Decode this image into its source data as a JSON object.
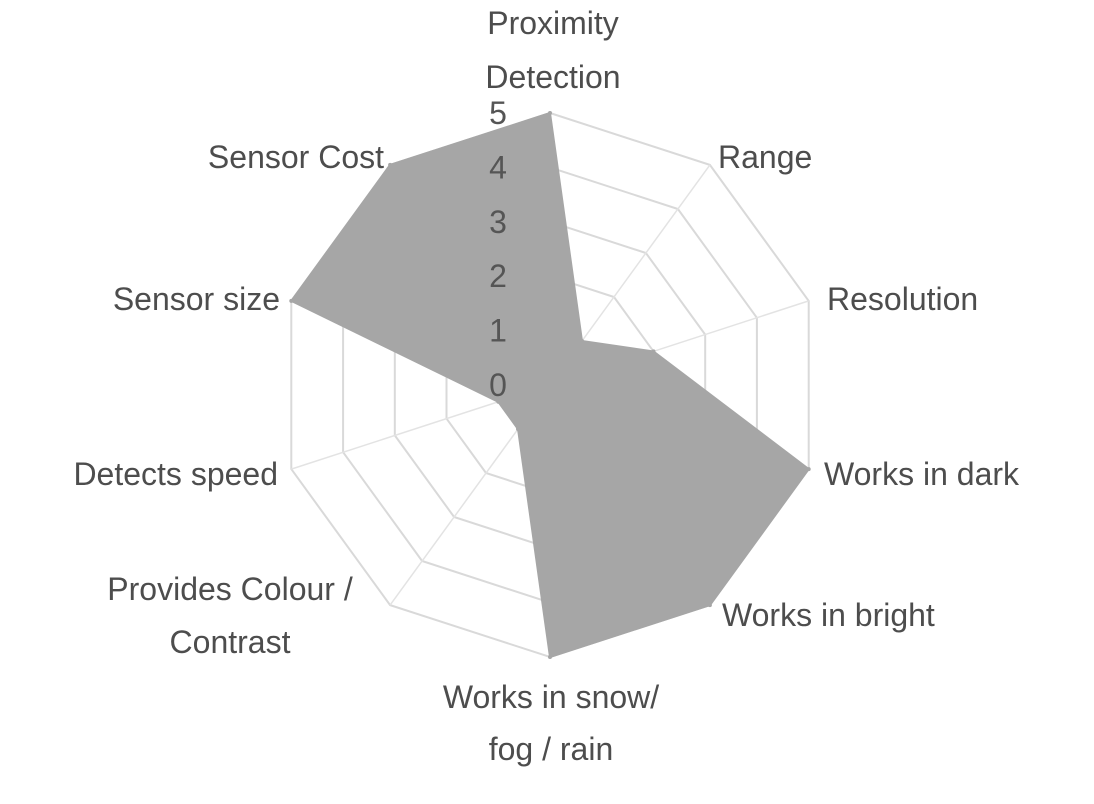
{
  "chart_data": {
    "type": "radar",
    "categories": [
      [
        "Proximity",
        "Detection"
      ],
      [
        "Range"
      ],
      [
        "Resolution"
      ],
      [
        "Works in dark"
      ],
      [
        "Works in bright"
      ],
      [
        "Works in snow/",
        "fog / rain"
      ],
      [
        "Provides Colour /",
        "Contrast"
      ],
      [
        "Detects speed"
      ],
      [
        "Sensor size"
      ],
      [
        "Sensor Cost"
      ]
    ],
    "values": [
      5,
      1,
      2,
      5,
      5,
      5,
      1,
      1,
      5,
      5
    ],
    "rlim": [
      0,
      5
    ],
    "ticks": [
      0,
      1,
      2,
      3,
      4,
      5
    ],
    "grid": true,
    "legend": "none",
    "fill_color": "#a6a6a6",
    "grid_color": "#d9d9d9"
  }
}
